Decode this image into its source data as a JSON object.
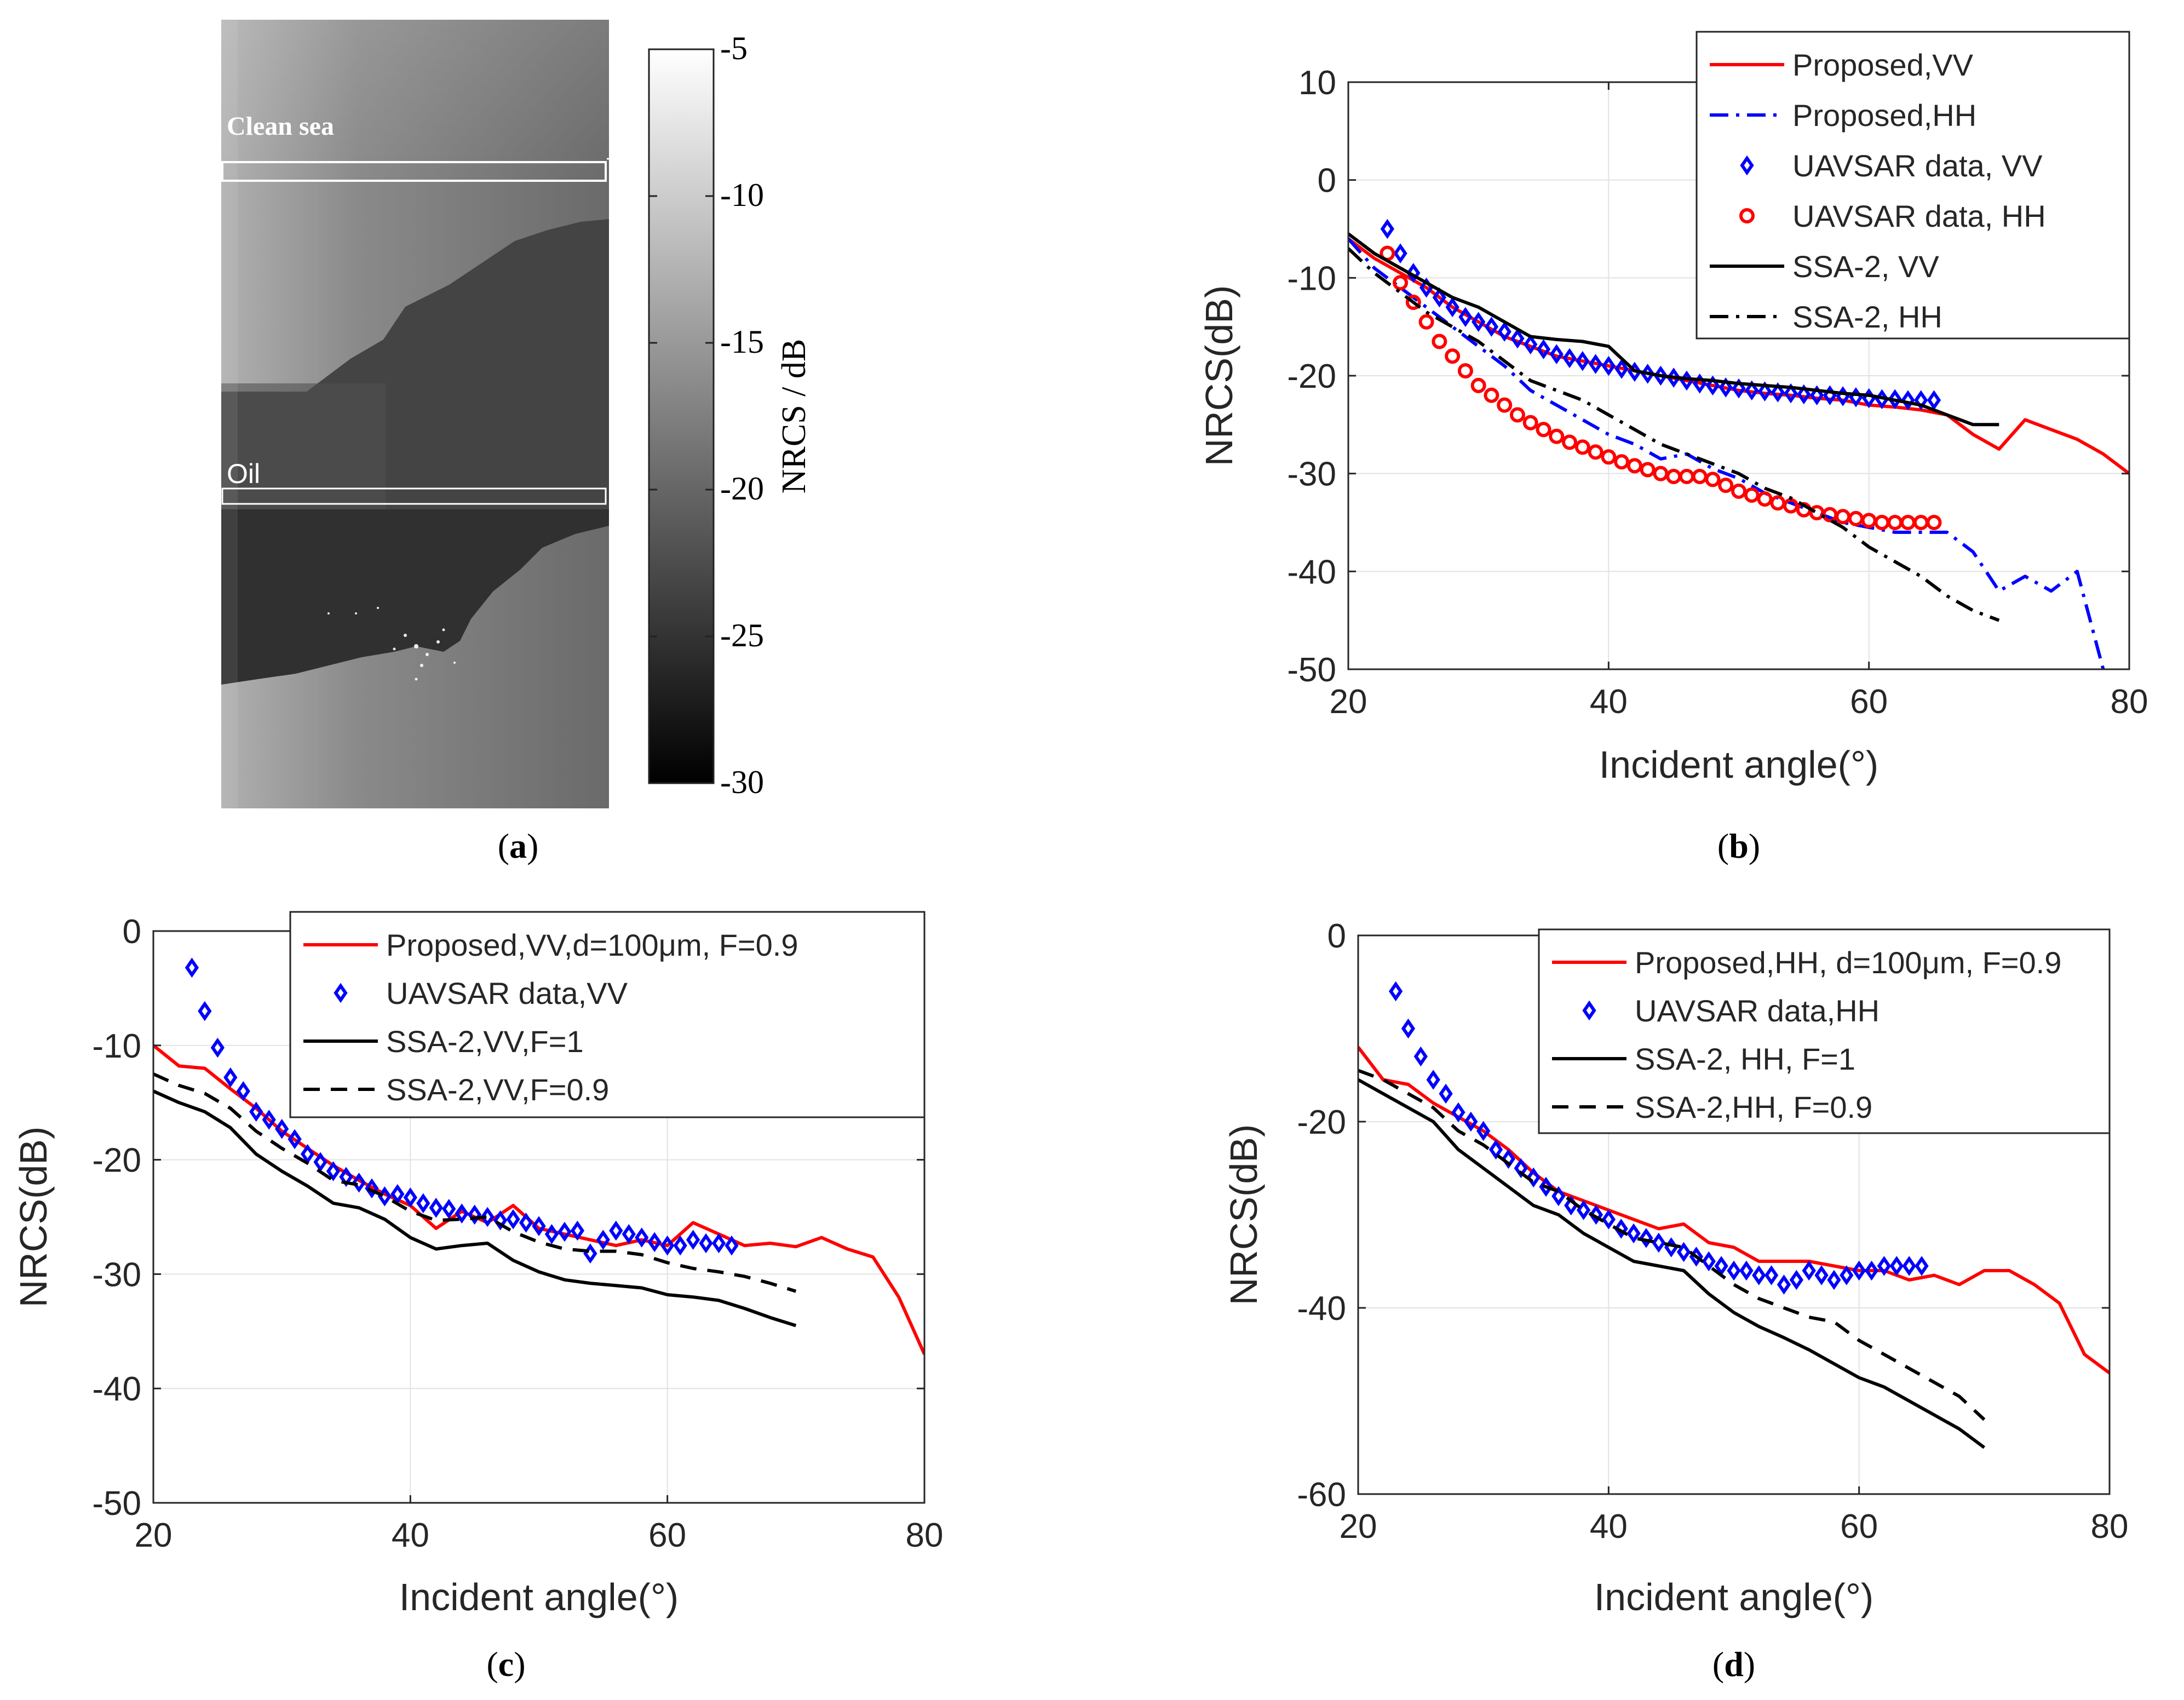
{
  "panel_a": {
    "labels": {
      "clean": "Clean sea",
      "oil": "Oil"
    },
    "colorbar": {
      "label": "NRCS / dB",
      "ticks": [
        "-5",
        "-10",
        "-15",
        "-20",
        "-25",
        "-30"
      ]
    },
    "caption": "a"
  },
  "chart_data": [
    {
      "type": "line",
      "panel": "b",
      "caption": "b",
      "xlabel": "Incident angle(°)",
      "ylabel": "NRCS(dB)",
      "xlim": [
        20,
        80
      ],
      "ylim": [
        -50,
        10
      ],
      "xticks": [
        "20",
        "40",
        "60",
        "80"
      ],
      "yticks": [
        "10",
        "0",
        "-10",
        "-20",
        "-30",
        "-40",
        "-50"
      ],
      "grid": true,
      "legend_position": "top-right",
      "series": [
        {
          "name": "Proposed,VV",
          "color": "#ff0000",
          "style": "solid",
          "x": [
            20,
            22,
            24,
            26,
            28,
            30,
            32,
            34,
            36,
            38,
            40,
            42,
            44,
            46,
            48,
            50,
            52,
            54,
            56,
            58,
            60,
            62,
            64,
            66,
            68,
            70,
            72,
            74,
            76,
            78,
            80
          ],
          "y": [
            -6,
            -8,
            -9.5,
            -11,
            -13,
            -14.5,
            -16,
            -17,
            -18,
            -18.5,
            -19,
            -19.5,
            -20,
            -20.5,
            -21,
            -21.5,
            -21.8,
            -22,
            -22.3,
            -22.5,
            -23,
            -23.2,
            -23.5,
            -24,
            -26,
            -27.5,
            -24.5,
            -25.5,
            -26.5,
            -28,
            -30
          ]
        },
        {
          "name": "Proposed,HH",
          "color": "#0000ff",
          "style": "dashdot",
          "x": [
            20,
            22,
            24,
            26,
            28,
            30,
            32,
            34,
            36,
            38,
            40,
            42,
            44,
            46,
            48,
            50,
            52,
            54,
            56,
            58,
            60,
            62,
            64,
            66,
            68,
            70,
            72,
            74,
            76,
            78
          ],
          "y": [
            -6,
            -9,
            -11,
            -13,
            -15,
            -17,
            -19,
            -21.5,
            -23,
            -24.5,
            -26,
            -27,
            -28.5,
            -28,
            -29.5,
            -30.5,
            -32,
            -33,
            -34,
            -35,
            -35.5,
            -36,
            -36,
            -36,
            -38,
            -42,
            -40.5,
            -42,
            -40,
            -50
          ]
        },
        {
          "name": "UAVSAR data, VV",
          "color": "#0000ff",
          "style": "diamond",
          "x": [
            23,
            24,
            25,
            26,
            27,
            28,
            29,
            30,
            31,
            32,
            33,
            34,
            35,
            36,
            37,
            38,
            39,
            40,
            41,
            42,
            43,
            44,
            45,
            46,
            47,
            48,
            49,
            50,
            51,
            52,
            53,
            54,
            55,
            56,
            57,
            58,
            59,
            60,
            61,
            62,
            63,
            64,
            65
          ],
          "y": [
            -5,
            -7.5,
            -9.5,
            -11,
            -12,
            -13,
            -14,
            -14.5,
            -15,
            -15.5,
            -16.2,
            -16.8,
            -17.3,
            -17.8,
            -18.2,
            -18.5,
            -18.8,
            -19,
            -19.3,
            -19.6,
            -19.8,
            -20,
            -20.2,
            -20.5,
            -20.8,
            -21,
            -21.2,
            -21.3,
            -21.5,
            -21.6,
            -21.7,
            -21.8,
            -21.9,
            -22,
            -22,
            -22.1,
            -22.2,
            -22.3,
            -22.4,
            -22.4,
            -22.5,
            -22.5,
            -22.5
          ]
        },
        {
          "name": "UAVSAR data, HH",
          "color": "#ff0000",
          "style": "circle",
          "x": [
            23,
            24,
            25,
            26,
            27,
            28,
            29,
            30,
            31,
            32,
            33,
            34,
            35,
            36,
            37,
            38,
            39,
            40,
            41,
            42,
            43,
            44,
            45,
            46,
            47,
            48,
            49,
            50,
            51,
            52,
            53,
            54,
            55,
            56,
            57,
            58,
            59,
            60,
            61,
            62,
            63,
            64,
            65
          ],
          "y": [
            -7.5,
            -10.5,
            -12.5,
            -14.5,
            -16.5,
            -18,
            -19.5,
            -21,
            -22,
            -23,
            -24,
            -24.8,
            -25.5,
            -26.2,
            -26.8,
            -27.3,
            -27.8,
            -28.3,
            -28.8,
            -29.2,
            -29.6,
            -30,
            -30.3,
            -30.3,
            -30.3,
            -30.6,
            -31.2,
            -31.8,
            -32.2,
            -32.6,
            -33,
            -33.3,
            -33.7,
            -34,
            -34.2,
            -34.4,
            -34.6,
            -34.8,
            -35,
            -35,
            -35,
            -35,
            -35
          ]
        },
        {
          "name": "SSA-2, VV",
          "color": "#000000",
          "style": "solid",
          "x": [
            20,
            22,
            24,
            26,
            28,
            30,
            32,
            34,
            36,
            38,
            40,
            42,
            44,
            46,
            48,
            50,
            52,
            54,
            56,
            58,
            60,
            62,
            64,
            66,
            68,
            70
          ],
          "y": [
            -5.5,
            -7.5,
            -9,
            -10.5,
            -12,
            -13,
            -14.5,
            -16,
            -16.3,
            -16.5,
            -17,
            -19.5,
            -20,
            -20.3,
            -20.5,
            -20.8,
            -21,
            -21.2,
            -21.5,
            -21.8,
            -22,
            -22.5,
            -23,
            -24,
            -25,
            -25
          ]
        },
        {
          "name": "SSA-2, HH",
          "color": "#000000",
          "style": "dashdot",
          "x": [
            20,
            22,
            24,
            26,
            28,
            30,
            32,
            34,
            36,
            38,
            40,
            42,
            44,
            46,
            48,
            50,
            52,
            54,
            56,
            58,
            60,
            62,
            64,
            66,
            68,
            70
          ],
          "y": [
            -7,
            -9.5,
            -11.5,
            -13.5,
            -15,
            -16.5,
            -18.5,
            -20.5,
            -21.5,
            -22.5,
            -24,
            -25.5,
            -27,
            -28,
            -29,
            -30,
            -31.5,
            -32.5,
            -34,
            -35.5,
            -37.5,
            -39,
            -40.5,
            -42.5,
            -44,
            -45
          ]
        }
      ]
    },
    {
      "type": "line",
      "panel": "c",
      "caption": "c",
      "xlabel": "Incident angle(°)",
      "ylabel": "NRCS(dB)",
      "xlim": [
        20,
        80
      ],
      "ylim": [
        -50,
        0
      ],
      "xticks": [
        "20",
        "40",
        "60",
        "80"
      ],
      "yticks": [
        "0",
        "-10",
        "-20",
        "-30",
        "-40",
        "-50"
      ],
      "grid": true,
      "legend_position": "top-right",
      "series": [
        {
          "name": "Proposed,VV,d=100μm, F=0.9",
          "color": "#ff0000",
          "style": "solid",
          "x": [
            20,
            22,
            24,
            26,
            28,
            30,
            32,
            34,
            36,
            38,
            40,
            42,
            44,
            46,
            48,
            50,
            52,
            54,
            56,
            58,
            60,
            62,
            64,
            66,
            68,
            70,
            72,
            74,
            76,
            78,
            80
          ],
          "y": [
            -10,
            -11.8,
            -12,
            -13.8,
            -15.5,
            -17.5,
            -19,
            -20.5,
            -21.8,
            -23,
            -24,
            -26,
            -24.5,
            -25.5,
            -24,
            -26,
            -26.5,
            -27,
            -27.5,
            -27,
            -27.5,
            -25.5,
            -26.5,
            -27.5,
            -27.3,
            -27.6,
            -26.8,
            -27.8,
            -28.5,
            -32,
            -37
          ]
        },
        {
          "name": "UAVSAR data,VV",
          "color": "#0000ff",
          "style": "diamond",
          "x": [
            23,
            24,
            25,
            26,
            27,
            28,
            29,
            30,
            31,
            32,
            33,
            34,
            35,
            36,
            37,
            38,
            39,
            40,
            41,
            42,
            43,
            44,
            45,
            46,
            47,
            48,
            49,
            50,
            51,
            52,
            53,
            54,
            55,
            56,
            57,
            58,
            59,
            60,
            61,
            62,
            63,
            64,
            65
          ],
          "y": [
            -3.2,
            -7,
            -10.2,
            -12.8,
            -14,
            -15.8,
            -16.5,
            -17.3,
            -18.2,
            -19.5,
            -20.2,
            -21,
            -21.5,
            -22,
            -22.5,
            -23.2,
            -23,
            -23.3,
            -23.8,
            -24.2,
            -24.3,
            -24.7,
            -24.8,
            -25,
            -25.3,
            -25.2,
            -25.5,
            -25.8,
            -26.5,
            -26.3,
            -26.2,
            -28.2,
            -27,
            -26.2,
            -26.5,
            -26.8,
            -27.2,
            -27.5,
            -27.5,
            -27,
            -27.3,
            -27.3,
            -27.5
          ]
        },
        {
          "name": "SSA-2,VV,F=1",
          "color": "#000000",
          "style": "solid",
          "x": [
            20,
            22,
            24,
            26,
            28,
            30,
            32,
            34,
            36,
            38,
            40,
            42,
            44,
            46,
            48,
            50,
            52,
            54,
            56,
            58,
            60,
            62,
            64,
            66,
            68,
            70
          ],
          "y": [
            -14,
            -15,
            -15.8,
            -17.2,
            -19.5,
            -21,
            -22.3,
            -23.8,
            -24.2,
            -25.2,
            -26.8,
            -27.8,
            -27.5,
            -27.3,
            -28.8,
            -29.8,
            -30.5,
            -30.8,
            -31,
            -31.2,
            -31.8,
            -32,
            -32.3,
            -33,
            -33.8,
            -34.5
          ]
        },
        {
          "name": "SSA-2,VV,F=0.9",
          "color": "#000000",
          "style": "dashed",
          "x": [
            20,
            22,
            24,
            26,
            28,
            30,
            32,
            34,
            36,
            38,
            40,
            42,
            44,
            46,
            48,
            50,
            52,
            54,
            56,
            58,
            60,
            62,
            64,
            66,
            68,
            70
          ],
          "y": [
            -12.5,
            -13.5,
            -14.2,
            -15.5,
            -17.5,
            -19,
            -20.3,
            -21.8,
            -22.2,
            -23.2,
            -24.5,
            -25.3,
            -25.2,
            -25,
            -26.3,
            -27.2,
            -27.8,
            -28,
            -28,
            -28.3,
            -29,
            -29.5,
            -29.8,
            -30.2,
            -30.8,
            -31.5
          ]
        }
      ]
    },
    {
      "type": "line",
      "panel": "d",
      "caption": "d",
      "xlabel": "Incident angle(°)",
      "ylabel": "NRCS(dB)",
      "xlim": [
        20,
        80
      ],
      "ylim": [
        -60,
        0
      ],
      "xticks": [
        "20",
        "40",
        "60",
        "80"
      ],
      "yticks": [
        "0",
        "-20",
        "-40",
        "-60"
      ],
      "grid": true,
      "legend_position": "top-right",
      "series": [
        {
          "name": "Proposed,HH, d=100μm, F=0.9",
          "color": "#ff0000",
          "style": "solid",
          "x": [
            20,
            22,
            24,
            26,
            28,
            30,
            32,
            34,
            36,
            38,
            40,
            42,
            44,
            46,
            48,
            50,
            52,
            54,
            56,
            58,
            60,
            62,
            64,
            66,
            68,
            70,
            72,
            74,
            76,
            78,
            80
          ],
          "y": [
            -12,
            -15.5,
            -16,
            -18,
            -19.5,
            -21,
            -23,
            -25.5,
            -27.5,
            -28.5,
            -29.5,
            -30.5,
            -31.5,
            -31,
            -33,
            -33.5,
            -35,
            -35,
            -35,
            -35.5,
            -36,
            -36,
            -37,
            -36.5,
            -37.5,
            -36,
            -36,
            -37.5,
            -39.5,
            -45,
            -47
          ]
        },
        {
          "name": "UAVSAR data,HH",
          "color": "#0000ff",
          "style": "diamond",
          "x": [
            23,
            24,
            25,
            26,
            27,
            28,
            29,
            30,
            31,
            32,
            33,
            34,
            35,
            36,
            37,
            38,
            39,
            40,
            41,
            42,
            43,
            44,
            45,
            46,
            47,
            48,
            49,
            50,
            51,
            52,
            53,
            54,
            55,
            56,
            57,
            58,
            59,
            60,
            61,
            62,
            63,
            64,
            65
          ],
          "y": [
            -6,
            -10,
            -13,
            -15.5,
            -17,
            -19,
            -20,
            -21,
            -23,
            -24,
            -25,
            -26,
            -27,
            -28,
            -29,
            -29.5,
            -30,
            -30.5,
            -31.5,
            -32,
            -32.5,
            -33,
            -33.5,
            -34,
            -34.5,
            -35,
            -35.5,
            -36,
            -36,
            -36.5,
            -36.5,
            -37.5,
            -37,
            -36,
            -36.5,
            -37,
            -36.5,
            -36,
            -36,
            -35.5,
            -35.5,
            -35.5,
            -35.5
          ]
        },
        {
          "name": "SSA-2, HH, F=1",
          "color": "#000000",
          "style": "solid",
          "x": [
            20,
            22,
            24,
            26,
            28,
            30,
            32,
            34,
            36,
            38,
            40,
            42,
            44,
            46,
            48,
            50,
            52,
            54,
            56,
            58,
            60,
            62,
            64,
            66,
            68,
            70
          ],
          "y": [
            -15.5,
            -17,
            -18.5,
            -20,
            -23,
            -25,
            -27,
            -29,
            -30,
            -32,
            -33.5,
            -35,
            -35.5,
            -36,
            -38.5,
            -40.5,
            -42,
            -43.2,
            -44.5,
            -46,
            -47.5,
            -48.5,
            -50,
            -51.5,
            -53,
            -55
          ]
        },
        {
          "name": "SSA-2,HH, F=0.9",
          "color": "#000000",
          "style": "dashed",
          "x": [
            20,
            22,
            24,
            26,
            28,
            30,
            32,
            34,
            36,
            38,
            40,
            42,
            44,
            46,
            48,
            50,
            52,
            54,
            56,
            58,
            60,
            62,
            64,
            66,
            68,
            70
          ],
          "y": [
            -14.5,
            -15.5,
            -17,
            -18.5,
            -21,
            -22.5,
            -24.5,
            -26.5,
            -27.5,
            -29.5,
            -31,
            -32.5,
            -33,
            -33.5,
            -35.5,
            -37.5,
            -39,
            -40,
            -41,
            -41.5,
            -43.5,
            -45,
            -46.5,
            -48,
            -49.5,
            -52
          ]
        }
      ]
    }
  ]
}
